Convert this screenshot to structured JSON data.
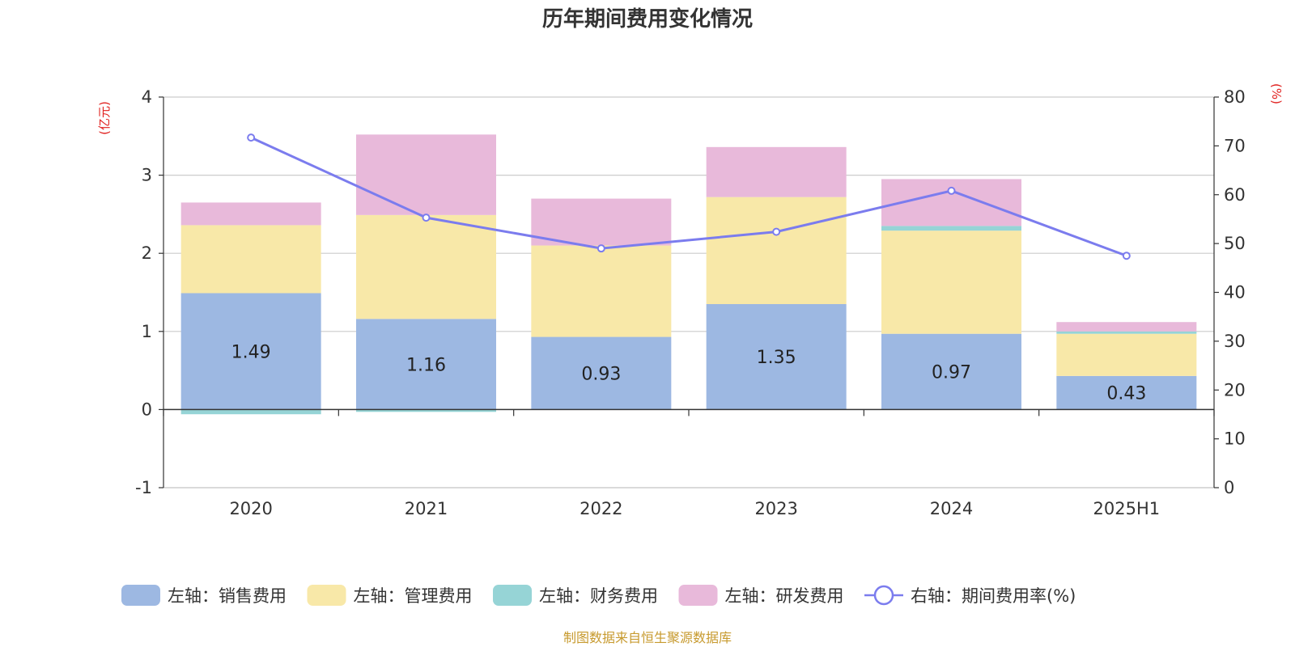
{
  "chart_data": {
    "type": "bar",
    "stacked": true,
    "title": "历年期间费用变化情况",
    "categories": [
      "2020",
      "2021",
      "2022",
      "2023",
      "2024",
      "2025H1"
    ],
    "left_axis": {
      "unit_label": "(亿元)",
      "range": [
        -1,
        4
      ],
      "ticks": [
        -1,
        0,
        1,
        2,
        3,
        4
      ]
    },
    "right_axis": {
      "unit_label": "(%)",
      "range": [
        0,
        80
      ],
      "ticks": [
        0,
        10,
        20,
        30,
        40,
        50,
        60,
        70,
        80
      ]
    },
    "grid": true,
    "legend_position": "bottom",
    "series": [
      {
        "name": "左轴：销售费用",
        "axis": "left",
        "color": "#9db8e2",
        "values": [
          1.49,
          1.16,
          0.93,
          1.35,
          0.97,
          0.43
        ],
        "data_labels": [
          "1.49",
          "1.16",
          "0.93",
          "1.35",
          "0.97",
          "0.43"
        ]
      },
      {
        "name": "左轴：管理费用",
        "axis": "left",
        "color": "#f8e8a8",
        "values": [
          0.87,
          1.33,
          1.17,
          1.37,
          1.32,
          0.54
        ]
      },
      {
        "name": "左轴：财务费用",
        "axis": "left",
        "color": "#96d4d6",
        "values": [
          -0.06,
          -0.03,
          0.0,
          0.0,
          0.06,
          0.03
        ]
      },
      {
        "name": "左轴：研发费用",
        "axis": "left",
        "color": "#e8b9da",
        "values": [
          0.29,
          1.03,
          0.6,
          0.64,
          0.6,
          0.12
        ]
      },
      {
        "name": "右轴：期间费用率(%)",
        "axis": "right",
        "type": "line",
        "color": "#7b7cee",
        "values": [
          71.7,
          55.3,
          49.0,
          52.4,
          60.8,
          47.5
        ]
      }
    ],
    "source": "制图数据来自恒生聚源数据库"
  }
}
